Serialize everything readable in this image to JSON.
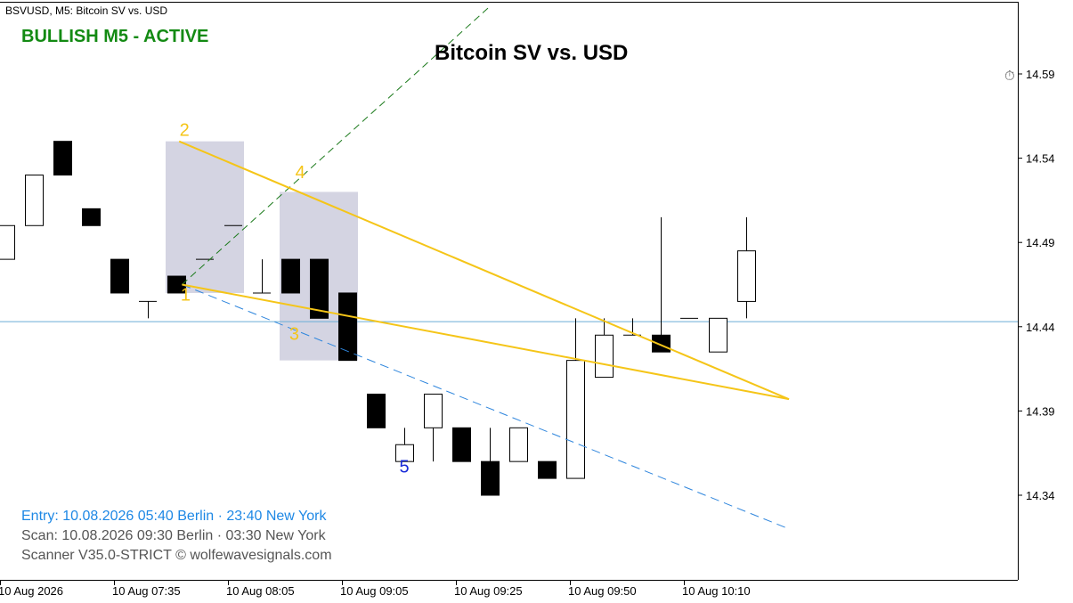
{
  "header": {
    "symbol_caption": "BSVUSD, M5:  Bitcoin SV vs. USD"
  },
  "signal": {
    "label": "BULLISH M5 - ACTIVE",
    "color": "#138a13"
  },
  "info": {
    "entry": "Entry: 10.08.2026  05:40 Berlin · 23:40 New York",
    "entry_color": "#1e88e5",
    "scan": "Scan:  10.08.2026  09:30 Berlin · 03:30 New York",
    "scan_color": "#555555",
    "version": "Scanner V35.0-STRICT   © wolfewavesignals.com",
    "version_color": "#555555"
  },
  "chart_data": {
    "type": "candlestick",
    "title": "Bitcoin SV vs. USD",
    "ylim": [
      14.31,
      14.625
    ],
    "y_ticks": [
      14.34,
      14.39,
      14.44,
      14.49,
      14.54,
      14.59
    ],
    "x_tick_labels": [
      {
        "index": 0,
        "label": "10 Aug 2026"
      },
      {
        "index": 4,
        "label": "10 Aug 07:35"
      },
      {
        "index": 8,
        "label": "10 Aug 08:05"
      },
      {
        "index": 12,
        "label": "10 Aug 09:05"
      },
      {
        "index": 16,
        "label": "10 Aug 09:25"
      },
      {
        "index": 20,
        "label": "10 Aug 09:50"
      },
      {
        "index": 24,
        "label": "10 Aug 10:10"
      }
    ],
    "candles": [
      {
        "o": 14.48,
        "h": 14.5,
        "l": 14.48,
        "c": 14.5
      },
      {
        "o": 14.5,
        "h": 14.53,
        "l": 14.5,
        "c": 14.53
      },
      {
        "o": 14.55,
        "h": 14.55,
        "l": 14.53,
        "c": 14.53
      },
      {
        "o": 14.51,
        "h": 14.51,
        "l": 14.5,
        "c": 14.5
      },
      {
        "o": 14.48,
        "h": 14.48,
        "l": 14.46,
        "c": 14.46
      },
      {
        "o": 14.455,
        "h": 14.455,
        "l": 14.445,
        "c": 14.455
      },
      {
        "o": 14.47,
        "h": 14.47,
        "l": 14.46,
        "c": 14.46
      },
      {
        "o": 14.48,
        "h": 14.48,
        "l": 14.48,
        "c": 14.48
      },
      {
        "o": 14.5,
        "h": 14.5,
        "l": 14.5,
        "c": 14.5
      },
      {
        "o": 14.46,
        "h": 14.48,
        "l": 14.46,
        "c": 14.46
      },
      {
        "o": 14.48,
        "h": 14.48,
        "l": 14.46,
        "c": 14.46
      },
      {
        "o": 14.48,
        "h": 14.48,
        "l": 14.445,
        "c": 14.445
      },
      {
        "o": 14.46,
        "h": 14.46,
        "l": 14.42,
        "c": 14.42
      },
      {
        "o": 14.4,
        "h": 14.4,
        "l": 14.38,
        "c": 14.38
      },
      {
        "o": 14.36,
        "h": 14.38,
        "l": 14.36,
        "c": 14.37
      },
      {
        "o": 14.38,
        "h": 14.4,
        "l": 14.36,
        "c": 14.4
      },
      {
        "o": 14.38,
        "h": 14.38,
        "l": 14.36,
        "c": 14.36
      },
      {
        "o": 14.36,
        "h": 14.38,
        "l": 14.34,
        "c": 14.34
      },
      {
        "o": 14.36,
        "h": 14.38,
        "l": 14.36,
        "c": 14.38
      },
      {
        "o": 14.36,
        "h": 14.36,
        "l": 14.35,
        "c": 14.35
      },
      {
        "o": 14.35,
        "h": 14.445,
        "l": 14.35,
        "c": 14.42
      },
      {
        "o": 14.41,
        "h": 14.445,
        "l": 14.41,
        "c": 14.435
      },
      {
        "o": 14.435,
        "h": 14.445,
        "l": 14.435,
        "c": 14.435
      },
      {
        "o": 14.435,
        "h": 14.505,
        "l": 14.425,
        "c": 14.425
      },
      {
        "o": 14.445,
        "h": 14.445,
        "l": 14.445,
        "c": 14.445
      },
      {
        "o": 14.425,
        "h": 14.445,
        "l": 14.425,
        "c": 14.445
      },
      {
        "o": 14.455,
        "h": 14.505,
        "l": 14.445,
        "c": 14.485
      }
    ],
    "current_price": 14.443,
    "zones": [
      {
        "from": 6,
        "to": 8,
        "top": 14.55,
        "bottom": 14.46
      },
      {
        "from": 10,
        "to": 12,
        "top": 14.52,
        "bottom": 14.42
      }
    ],
    "wave_points": [
      {
        "label": "1",
        "i": 6.2,
        "y": 14.465
      },
      {
        "label": "2",
        "i": 6.1,
        "y": 14.55
      },
      {
        "label": "3",
        "i": 10.2,
        "y": 14.445
      },
      {
        "label": "4",
        "i": 10.1,
        "y": 14.525
      },
      {
        "label": "5",
        "i": 14.0,
        "y": 14.365
      }
    ],
    "wedge_lines": [
      {
        "i1": 6.1,
        "y1": 14.55,
        "i2": 27.5,
        "y2": 14.397
      },
      {
        "i1": 6.2,
        "y1": 14.465,
        "i2": 27.5,
        "y2": 14.397
      }
    ],
    "line_1_3": {
      "i1": 6.2,
      "y1": 14.465,
      "i2": 27.5,
      "y2": 14.32
    },
    "line_1_4": {
      "i1": 6.2,
      "y1": 14.465,
      "i2": 17.0,
      "y2": 14.63
    },
    "colors": {
      "bull_body": "#ffffff",
      "bear_body": "#000000",
      "wedge": "#f5c518",
      "zone": "#d4d4e2",
      "line_1_3": "#2f86dd",
      "line_1_4": "#1b7a1b",
      "price_line": "#6aaed6",
      "wave_label": "#f5c518",
      "wave5_label": "#1a2bd8"
    }
  }
}
